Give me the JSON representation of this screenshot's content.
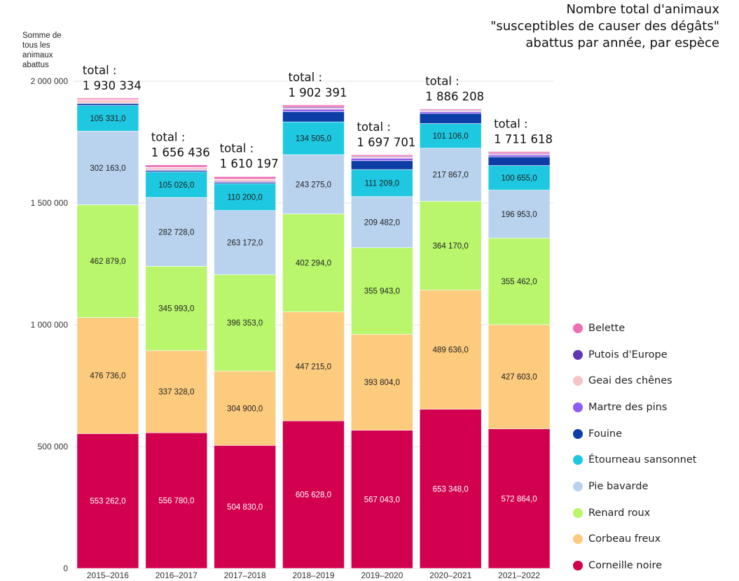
{
  "title_lines": [
    "Nombre total d'animaux",
    "\"susceptibles de causer des dégâts\"",
    "abattus par année, par espèce"
  ],
  "ylabel_lines": [
    "Somme de",
    "tous les",
    "animaux",
    "abattus"
  ],
  "chart_data": {
    "type": "bar",
    "stacked": true,
    "title": "Nombre total d'animaux \"susceptibles de causer des dégâts\" abattus par année, par espèce",
    "ylabel": "Somme de tous les animaux abattus",
    "xlabel": "",
    "ylim": [
      0,
      2000000
    ],
    "yticks": [
      0,
      500000,
      1000000,
      1500000,
      2000000
    ],
    "ytick_labels": [
      "0",
      "500 000",
      "1 000 000",
      "1 500 000",
      "2 000 000"
    ],
    "grid": true,
    "legend_position": "right",
    "categories": [
      "2015–2016",
      "2016–2017",
      "2017–2018",
      "2018–2019",
      "2019–2020",
      "2020–2021",
      "2021–2022"
    ],
    "totals": [
      1930334,
      1656436,
      1610197,
      1902391,
      1697701,
      1886208,
      1711618
    ],
    "total_prefix": "total :",
    "total_labels": [
      "1 930 334",
      "1 656 436",
      "1 610 197",
      "1 902 391",
      "1 697 701",
      "1 886 208",
      "1 711 618"
    ],
    "series": [
      {
        "name": "Corneille noire",
        "color": "#d2004f",
        "label_color": "#ffffff",
        "values": [
          553262,
          556780,
          504830,
          605628,
          567043,
          653348,
          572864
        ],
        "labels": [
          "553 262,0",
          "556 780,0",
          "504 830,0",
          "605 628,0",
          "567 043,0",
          "653 348,0",
          "572 864,0"
        ]
      },
      {
        "name": "Corbeau freux",
        "color": "#fccb7e",
        "label_color": "#222222",
        "values": [
          476736,
          337328,
          304900,
          447215,
          393804,
          489636,
          427603
        ],
        "labels": [
          "476 736,0",
          "337 328,0",
          "304 900,0",
          "447 215,0",
          "393 804,0",
          "489 636,0",
          "427 603,0"
        ]
      },
      {
        "name": "Renard roux",
        "color": "#b9f66c",
        "label_color": "#222222",
        "values": [
          462879,
          345993,
          396353,
          402294,
          355943,
          364170,
          355462
        ],
        "labels": [
          "462 879,0",
          "345 993,0",
          "396 353,0",
          "402 294,0",
          "355 943,0",
          "364 170,0",
          "355 462,0"
        ]
      },
      {
        "name": "Pie bavarde",
        "color": "#b9d3ef",
        "label_color": "#222222",
        "values": [
          302163,
          282728,
          263172,
          243275,
          209482,
          217867,
          196953
        ],
        "labels": [
          "302 163,0",
          "282 728,0",
          "263 172,0",
          "243 275,0",
          "209 482,0",
          "217 867,0",
          "196 953,0"
        ]
      },
      {
        "name": "Étourneau sansonnet",
        "color": "#1ec8e1",
        "label_color": "#222222",
        "values": [
          105331,
          105026,
          110200,
          134505,
          111209,
          101106,
          100655
        ],
        "labels": [
          "105 331,0",
          "105 026,0",
          "110 200,0",
          "134 505,0",
          "111 209,0",
          "101 106,0",
          "100 655,0"
        ]
      },
      {
        "name": "Fouine",
        "color": "#0d3da6",
        "label_color": "#ffffff",
        "values": [
          8000,
          5500,
          5500,
          42000,
          36000,
          42000,
          36000
        ],
        "labels": []
      },
      {
        "name": "Martre des pins",
        "color": "#8d5cf0",
        "label_color": "#ffffff",
        "values": [
          2500,
          3500,
          3500,
          10000,
          10000,
          7000,
          8000
        ],
        "labels": []
      },
      {
        "name": "Geai des chênes",
        "color": "#f7c4c4",
        "label_color": "#222222",
        "values": [
          12000,
          8000,
          8000,
          4500,
          5500,
          4000,
          4000
        ],
        "labels": []
      },
      {
        "name": "Putois d'Europe",
        "color": "#6337b4",
        "label_color": "#ffffff",
        "values": [
          1500,
          1500,
          1500,
          4500,
          3500,
          3000,
          3500
        ],
        "labels": []
      },
      {
        "name": "Belette",
        "color": "#ef6fb4",
        "label_color": "#ffffff",
        "values": [
          5963,
          10081,
          10242,
          8470,
          5520,
          4081,
          6081
        ],
        "labels": []
      }
    ],
    "legend_order": [
      "Belette",
      "Putois d'Europe",
      "Geai des chênes",
      "Martre des pins",
      "Fouine",
      "Étourneau sansonnet",
      "Pie bavarde",
      "Renard roux",
      "Corbeau freux",
      "Corneille noire"
    ]
  }
}
